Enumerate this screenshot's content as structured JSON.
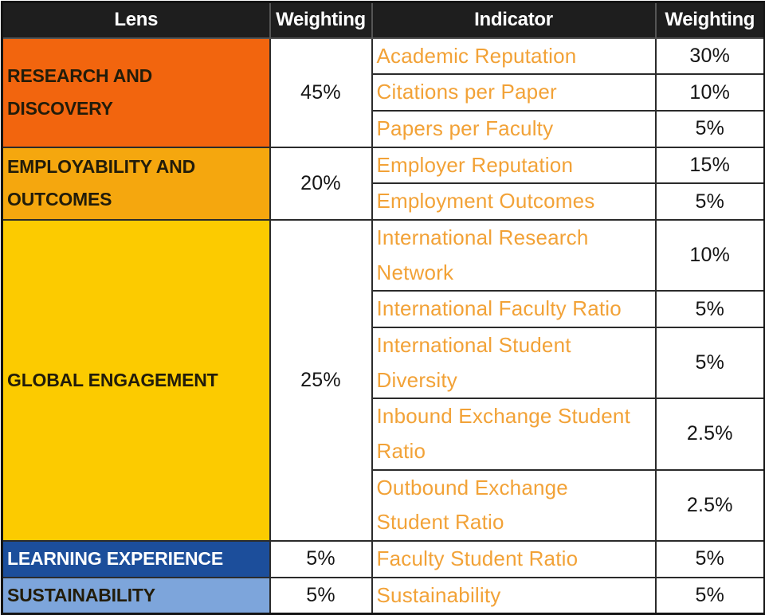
{
  "header": {
    "lens": "Lens",
    "lens_weighting": "Weighting",
    "indicator": "Indicator",
    "indicator_weighting": "Weighting"
  },
  "colors": {
    "header_bg": "#1e1e1e",
    "header_text": "#ffffff",
    "research_discovery_bg": "#f2650e",
    "employability_outcomes_bg": "#f5a70e",
    "global_engagement_bg": "#fccb00",
    "learning_experience_bg": "#1c4e9b",
    "sustainability_bg": "#7da5db",
    "indicator_text": "#f2a237",
    "lens_text_dark": "#221c0a",
    "lens_text_light": "#ffffff",
    "border": "#2b2b2b"
  },
  "sections": [
    {
      "lens": "RESEARCH AND DISCOVERY",
      "lens_lines": [
        "RESEARCH AND",
        "DISCOVERY"
      ],
      "weighting": "45%",
      "rows": [
        {
          "indicator": "Academic Reputation",
          "indicator_lines": [
            "Academic Reputation"
          ],
          "weighting": "30%"
        },
        {
          "indicator": "Citations per Paper",
          "indicator_lines": [
            "Citations per Paper"
          ],
          "weighting": "10%"
        },
        {
          "indicator": "Papers per Faculty",
          "indicator_lines": [
            "Papers per Faculty"
          ],
          "weighting": "5%"
        }
      ]
    },
    {
      "lens": "EMPLOYABILITY AND OUTCOMES",
      "lens_lines": [
        "EMPLOYABILITY AND",
        "OUTCOMES"
      ],
      "weighting": "20%",
      "rows": [
        {
          "indicator": "Employer Reputation",
          "indicator_lines": [
            "Employer Reputation"
          ],
          "weighting": "15%"
        },
        {
          "indicator": "Employment Outcomes",
          "indicator_lines": [
            "Employment Outcomes"
          ],
          "weighting": "5%"
        }
      ]
    },
    {
      "lens": "GLOBAL ENGAGEMENT",
      "lens_lines": [
        "GLOBAL ENGAGEMENT"
      ],
      "weighting": "25%",
      "rows": [
        {
          "indicator": "International Research Network",
          "indicator_lines": [
            "International Research",
            "Network"
          ],
          "weighting": "10%"
        },
        {
          "indicator": "International Faculty Ratio",
          "indicator_lines": [
            "International Faculty Ratio"
          ],
          "weighting": "5%"
        },
        {
          "indicator": "International Student Diversity",
          "indicator_lines": [
            "International Student",
            "Diversity"
          ],
          "weighting": "5%"
        },
        {
          "indicator": "Inbound Exchange Student Ratio",
          "indicator_lines": [
            "Inbound Exchange Student",
            "Ratio"
          ],
          "weighting": "2.5%"
        },
        {
          "indicator": "Outbound Exchange Student Ratio",
          "indicator_lines": [
            "Outbound Exchange",
            "Student Ratio"
          ],
          "weighting": "2.5%"
        }
      ]
    },
    {
      "lens": "LEARNING EXPERIENCE",
      "lens_lines": [
        "LEARNING EXPERIENCE"
      ],
      "weighting": "5%",
      "rows": [
        {
          "indicator": "Faculty Student Ratio",
          "indicator_lines": [
            "Faculty Student Ratio"
          ],
          "weighting": "5%"
        }
      ]
    },
    {
      "lens": "SUSTAINABILITY",
      "lens_lines": [
        "SUSTAINABILITY"
      ],
      "weighting": "5%",
      "rows": [
        {
          "indicator": "Sustainability",
          "indicator_lines": [
            "Sustainability"
          ],
          "weighting": "5%"
        }
      ]
    }
  ],
  "chart_data": {
    "type": "table",
    "title": "",
    "columns": [
      "Lens",
      "Weighting",
      "Indicator",
      "Weighting"
    ],
    "rows": [
      [
        "RESEARCH AND DISCOVERY",
        "45%",
        "Academic Reputation",
        "30%"
      ],
      [
        "RESEARCH AND DISCOVERY",
        "45%",
        "Citations per Paper",
        "10%"
      ],
      [
        "RESEARCH AND DISCOVERY",
        "45%",
        "Papers per Faculty",
        "5%"
      ],
      [
        "EMPLOYABILITY AND OUTCOMES",
        "20%",
        "Employer Reputation",
        "15%"
      ],
      [
        "EMPLOYABILITY AND OUTCOMES",
        "20%",
        "Employment Outcomes",
        "5%"
      ],
      [
        "GLOBAL ENGAGEMENT",
        "25%",
        "International Research Network",
        "10%"
      ],
      [
        "GLOBAL ENGAGEMENT",
        "25%",
        "International Faculty Ratio",
        "5%"
      ],
      [
        "GLOBAL ENGAGEMENT",
        "25%",
        "International Student Diversity",
        "5%"
      ],
      [
        "GLOBAL ENGAGEMENT",
        "25%",
        "Inbound Exchange Student Ratio",
        "2.5%"
      ],
      [
        "GLOBAL ENGAGEMENT",
        "25%",
        "Outbound Exchange Student Ratio",
        "2.5%"
      ],
      [
        "LEARNING EXPERIENCE",
        "5%",
        "Faculty Student Ratio",
        "5%"
      ],
      [
        "SUSTAINABILITY",
        "5%",
        "Sustainability",
        "5%"
      ]
    ]
  }
}
